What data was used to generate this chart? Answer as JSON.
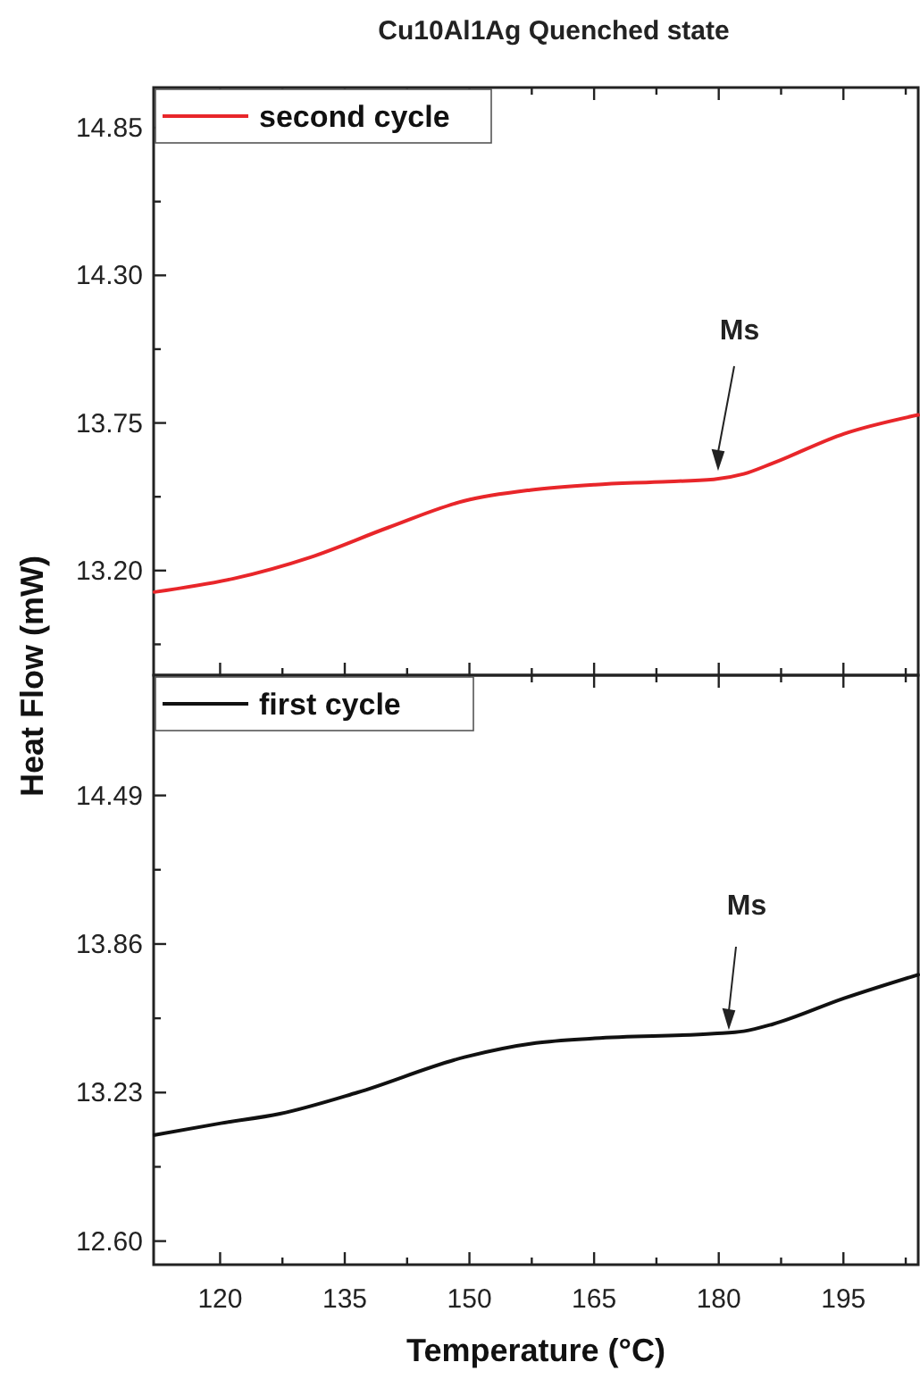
{
  "chart_data": [
    {
      "type": "line",
      "title": "Cu10Al1Ag Quenched state",
      "ylabel": "Heat Flow (mW)",
      "legend": "top left",
      "tick_labels": "y",
      "line_style": "solid",
      "xlim": [
        112,
        204
      ],
      "xticks": [
        120,
        {
          "value": 127.5,
          "label": null
        },
        135,
        {
          "value": 142.5,
          "label": null
        },
        150,
        {
          "value": 157.5,
          "label": null
        },
        165,
        {
          "value": 172.5,
          "label": null
        },
        180,
        {
          "value": 187.5,
          "label": null
        },
        195,
        {
          "value": 202.5,
          "label": null
        }
      ],
      "ylim": [
        12.81,
        15.0
      ],
      "yticks": [
        {
          "value": 12.925,
          "label": null
        },
        {
          "value": 13.2,
          "label": "13.20"
        },
        {
          "value": 13.475,
          "label": null
        },
        13.75,
        {
          "value": 14.025,
          "label": null
        },
        {
          "value": 14.3,
          "label": "14.30"
        },
        {
          "value": 14.575,
          "label": null
        },
        14.85
      ],
      "series": [
        {
          "name": "second cycle",
          "color": "#e8262a",
          "x": [
            112.1,
            121.6,
            130.9,
            140.2,
            149.4,
            157.3,
            165.1,
            172.2,
            179.4,
            183,
            186.5,
            195.1,
            204
          ],
          "values": [
            13.12,
            13.17,
            13.25,
            13.36,
            13.46,
            13.5,
            13.52,
            13.53,
            13.54,
            13.56,
            13.6,
            13.71,
            13.78
          ]
        }
      ],
      "annotations": [
        "Ms"
      ]
    },
    {
      "type": "line",
      "xlabel": "Temperature (°C)",
      "legend": "top left",
      "line_style": "solid",
      "xlim": [
        112,
        204
      ],
      "xticks": [
        120,
        {
          "value": 127.5,
          "label": null
        },
        135,
        {
          "value": 142.5,
          "label": null
        },
        150,
        {
          "value": 157.5,
          "label": null
        },
        165,
        {
          "value": 172.5,
          "label": null
        },
        180,
        {
          "value": 187.5,
          "label": null
        },
        195,
        {
          "value": 202.5,
          "label": null
        }
      ],
      "ylim": [
        12.5,
        15.0
      ],
      "yticks": [
        {
          "value": 12.6,
          "label": "12.60"
        },
        {
          "value": 12.915,
          "label": null
        },
        13.23,
        {
          "value": 13.545,
          "label": null
        },
        13.86,
        {
          "value": 14.175,
          "label": null
        },
        14.49
      ],
      "series": [
        {
          "name": "first cycle",
          "color": "#111111",
          "x": [
            112.1,
            120.1,
            127.2,
            136.5,
            149.4,
            158,
            165.1,
            179.4,
            183,
            186.5,
            195.1,
            204
          ],
          "values": [
            13.05,
            13.1,
            13.14,
            13.23,
            13.38,
            13.44,
            13.46,
            13.48,
            13.49,
            13.52,
            13.63,
            13.73
          ]
        }
      ],
      "annotations": [
        "Ms"
      ]
    }
  ]
}
